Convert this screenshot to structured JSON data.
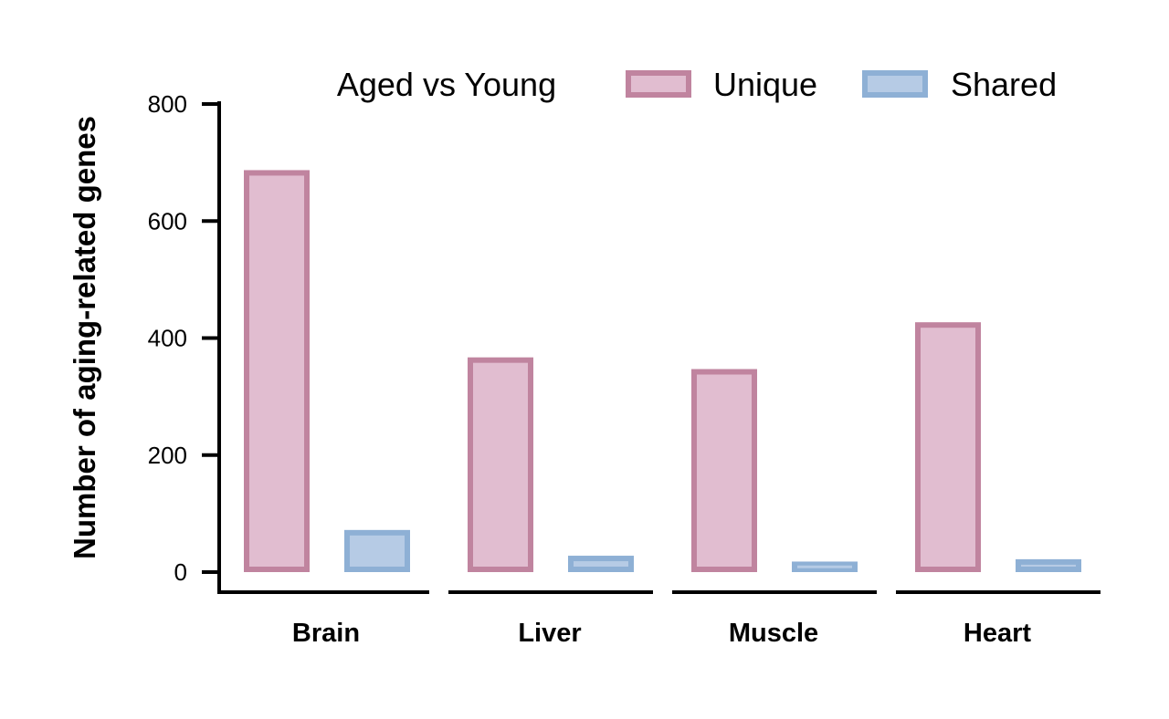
{
  "chart_data": {
    "type": "bar",
    "legend_title": "Aged vs Young",
    "legend_position": "top",
    "ylabel": "Number of aging-related genes",
    "xlabel": "",
    "ylim": [
      0,
      800
    ],
    "yticks": [
      0,
      200,
      400,
      600,
      800
    ],
    "grid": false,
    "categories": [
      "Brain",
      "Liver",
      "Muscle",
      "Heart"
    ],
    "series": [
      {
        "name": "Unique",
        "values": [
          687,
          367,
          347,
          427
        ],
        "fill": "#e1bdd0",
        "stroke": "#c0849f"
      },
      {
        "name": "Shared",
        "values": [
          72,
          28,
          18,
          22
        ],
        "fill": "#b6cbe5",
        "stroke": "#8eb0d5"
      }
    ]
  }
}
